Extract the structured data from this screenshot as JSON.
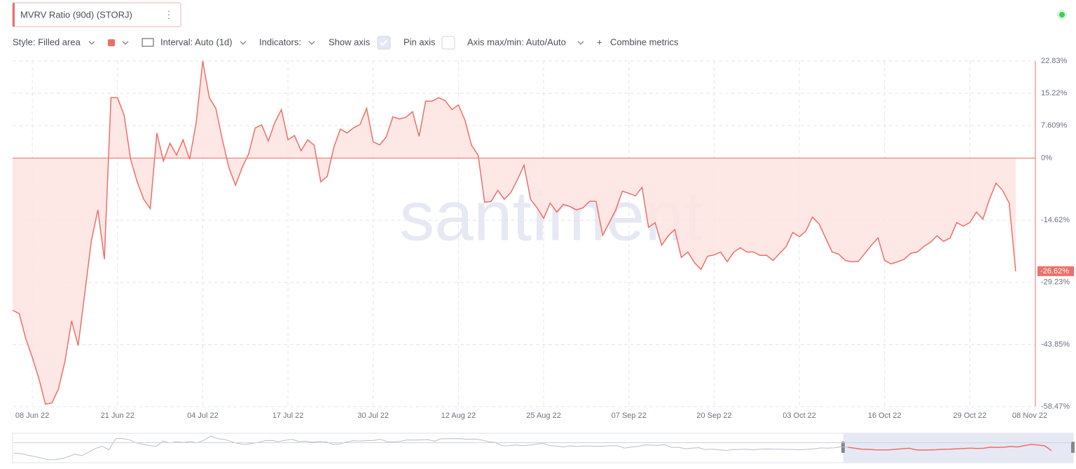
{
  "toolbar": {
    "title": "MVRV Ratio (90d) (STORJ)",
    "style": "Style: Filled area",
    "interval": "Interval: Auto (1d)",
    "indicators": "Indicators:",
    "show_axis": "Show axis",
    "pin_axis": "Pin axis",
    "axis_minmax": "Axis max/min: Auto/Auto",
    "combine": "Combine metrics"
  },
  "chart_data": {
    "type": "area",
    "watermark": "santiment",
    "color": "#ef6f67",
    "fill": "#fde4e2",
    "x": [
      "05 Jun 22",
      "06 Jun 22",
      "07 Jun 22",
      "08 Jun 22",
      "09 Jun 22",
      "10 Jun 22",
      "11 Jun 22",
      "12 Jun 22",
      "13 Jun 22",
      "14 Jun 22",
      "15 Jun 22",
      "16 Jun 22",
      "17 Jun 22",
      "18 Jun 22",
      "19 Jun 22",
      "20 Jun 22",
      "21 Jun 22",
      "22 Jun 22",
      "23 Jun 22",
      "24 Jun 22",
      "25 Jun 22",
      "26 Jun 22",
      "27 Jun 22",
      "28 Jun 22",
      "29 Jun 22",
      "30 Jun 22",
      "01 Jul 22",
      "02 Jul 22",
      "03 Jul 22",
      "04 Jul 22",
      "05 Jul 22",
      "06 Jul 22",
      "07 Jul 22",
      "08 Jul 22",
      "09 Jul 22",
      "10 Jul 22",
      "11 Jul 22",
      "12 Jul 22",
      "13 Jul 22",
      "14 Jul 22",
      "15 Jul 22",
      "16 Jul 22",
      "17 Jul 22",
      "18 Jul 22",
      "19 Jul 22",
      "20 Jul 22",
      "21 Jul 22",
      "22 Jul 22",
      "23 Jul 22",
      "24 Jul 22",
      "25 Jul 22",
      "26 Jul 22",
      "27 Jul 22",
      "28 Jul 22",
      "29 Jul 22",
      "30 Jul 22",
      "31 Jul 22",
      "01 Aug 22",
      "02 Aug 22",
      "03 Aug 22",
      "04 Aug 22",
      "05 Aug 22",
      "06 Aug 22",
      "07 Aug 22",
      "08 Aug 22",
      "09 Aug 22",
      "10 Aug 22",
      "11 Aug 22",
      "12 Aug 22",
      "13 Aug 22",
      "14 Aug 22",
      "15 Aug 22",
      "16 Aug 22",
      "17 Aug 22",
      "18 Aug 22",
      "19 Aug 22",
      "20 Aug 22",
      "21 Aug 22",
      "22 Aug 22",
      "23 Aug 22",
      "24 Aug 22",
      "25 Aug 22",
      "26 Aug 22",
      "27 Aug 22",
      "28 Aug 22",
      "29 Aug 22",
      "30 Aug 22",
      "31 Aug 22",
      "01 Sep 22",
      "02 Sep 22",
      "03 Sep 22",
      "04 Sep 22",
      "05 Sep 22",
      "06 Sep 22",
      "07 Sep 22",
      "08 Sep 22",
      "09 Sep 22",
      "10 Sep 22",
      "11 Sep 22",
      "12 Sep 22",
      "13 Sep 22",
      "14 Sep 22",
      "15 Sep 22",
      "16 Sep 22",
      "17 Sep 22",
      "18 Sep 22",
      "19 Sep 22",
      "20 Sep 22",
      "21 Sep 22",
      "22 Sep 22",
      "23 Sep 22",
      "24 Sep 22",
      "25 Sep 22",
      "26 Sep 22",
      "27 Sep 22",
      "28 Sep 22",
      "29 Sep 22",
      "30 Sep 22",
      "01 Oct 22",
      "02 Oct 22",
      "03 Oct 22",
      "04 Oct 22",
      "05 Oct 22",
      "06 Oct 22",
      "07 Oct 22",
      "08 Oct 22",
      "09 Oct 22",
      "10 Oct 22",
      "11 Oct 22",
      "12 Oct 22",
      "13 Oct 22",
      "14 Oct 22",
      "15 Oct 22",
      "16 Oct 22",
      "17 Oct 22",
      "18 Oct 22",
      "19 Oct 22",
      "20 Oct 22",
      "21 Oct 22",
      "22 Oct 22",
      "23 Oct 22",
      "24 Oct 22",
      "25 Oct 22",
      "26 Oct 22",
      "27 Oct 22",
      "28 Oct 22",
      "29 Oct 22",
      "30 Oct 22",
      "31 Oct 22",
      "01 Nov 22",
      "02 Nov 22",
      "03 Nov 22",
      "04 Nov 22",
      "05 Nov 22"
    ],
    "values": [
      -35.8,
      -36.6,
      -42.4,
      -46.9,
      -51.8,
      -57.9,
      -57.6,
      -54.3,
      -47.7,
      -38.3,
      -44.1,
      -32,
      -19.6,
      -12.2,
      -23.8,
      14.2,
      14.2,
      10.1,
      -0.3,
      -5.6,
      -9.7,
      -11.9,
      5.9,
      -0.7,
      3.5,
      0.7,
      4.3,
      -0.3,
      8.4,
      22.83,
      14.2,
      11.7,
      4.3,
      -2.3,
      -6.4,
      -2.3,
      1,
      7.1,
      7.8,
      4,
      8.4,
      11.4,
      4.3,
      5.3,
      1.7,
      4.3,
      3,
      -5.6,
      -4.3,
      2.6,
      6.8,
      5.9,
      7.1,
      7.9,
      11.7,
      3.8,
      3.1,
      5,
      9.7,
      9.2,
      9.6,
      10.9,
      5.1,
      13.4,
      13.4,
      14.2,
      13.5,
      11.4,
      12.5,
      8.9,
      3,
      0.7,
      -10.4,
      -10.2,
      -7.6,
      -9.7,
      -8.1,
      -5.1,
      -1.7,
      -9.7,
      -11.7,
      -14.2,
      -10.6,
      -12.7,
      -10.9,
      -11.4,
      -12.2,
      -11.7,
      -10.2,
      -10.2,
      -18.2,
      -15.2,
      -12.2,
      -7.8,
      -8.3,
      -8.9,
      -6.9,
      -16.3,
      -15.2,
      -20.5,
      -18.3,
      -16.8,
      -23.4,
      -22.1,
      -24.6,
      -26.2,
      -23.1,
      -22.8,
      -22.1,
      -24.4,
      -22.1,
      -21.1,
      -22.1,
      -22.1,
      -22.9,
      -22.9,
      -24.1,
      -22.4,
      -20.8,
      -17.5,
      -18.5,
      -17.2,
      -13.9,
      -15.5,
      -18.8,
      -22.1,
      -22.6,
      -24.1,
      -24.4,
      -24.3,
      -22.4,
      -20.5,
      -18.8,
      -24.1,
      -24.9,
      -24.4,
      -23.8,
      -22.4,
      -22.1,
      -20.8,
      -19.8,
      -18.3,
      -19.6,
      -18.8,
      -15.2,
      -16,
      -15.2,
      -12.7,
      -14.4,
      -9.7,
      -5.9,
      -7.6,
      -10.6,
      -26.62
    ],
    "xlim": [
      "05 Jun 22",
      "08 Nov 22"
    ],
    "xticks": [
      "08 Jun 22",
      "21 Jun 22",
      "04 Jul 22",
      "17 Jul 22",
      "30 Jul 22",
      "12 Aug 22",
      "25 Aug 22",
      "07 Sep 22",
      "20 Sep 22",
      "03 Oct 22",
      "16 Oct 22",
      "29 Oct 22",
      "08 Nov 22"
    ],
    "ylim": [
      -58.47,
      22.83
    ],
    "yticks": [
      {
        "value": 22.83,
        "label": "22.83%"
      },
      {
        "value": 15.22,
        "label": "15.22%"
      },
      {
        "value": 7.609,
        "label": "7.609%"
      },
      {
        "value": 0,
        "label": "0%"
      },
      {
        "value": -14.62,
        "label": "-14.62%"
      },
      {
        "value": -29.23,
        "label": "-29.23%"
      },
      {
        "value": -43.85,
        "label": "-43.85%"
      },
      {
        "value": -58.47,
        "label": "-58.47%"
      }
    ],
    "grid": true,
    "current": {
      "value": -26.62,
      "label": "-26.62%"
    }
  }
}
